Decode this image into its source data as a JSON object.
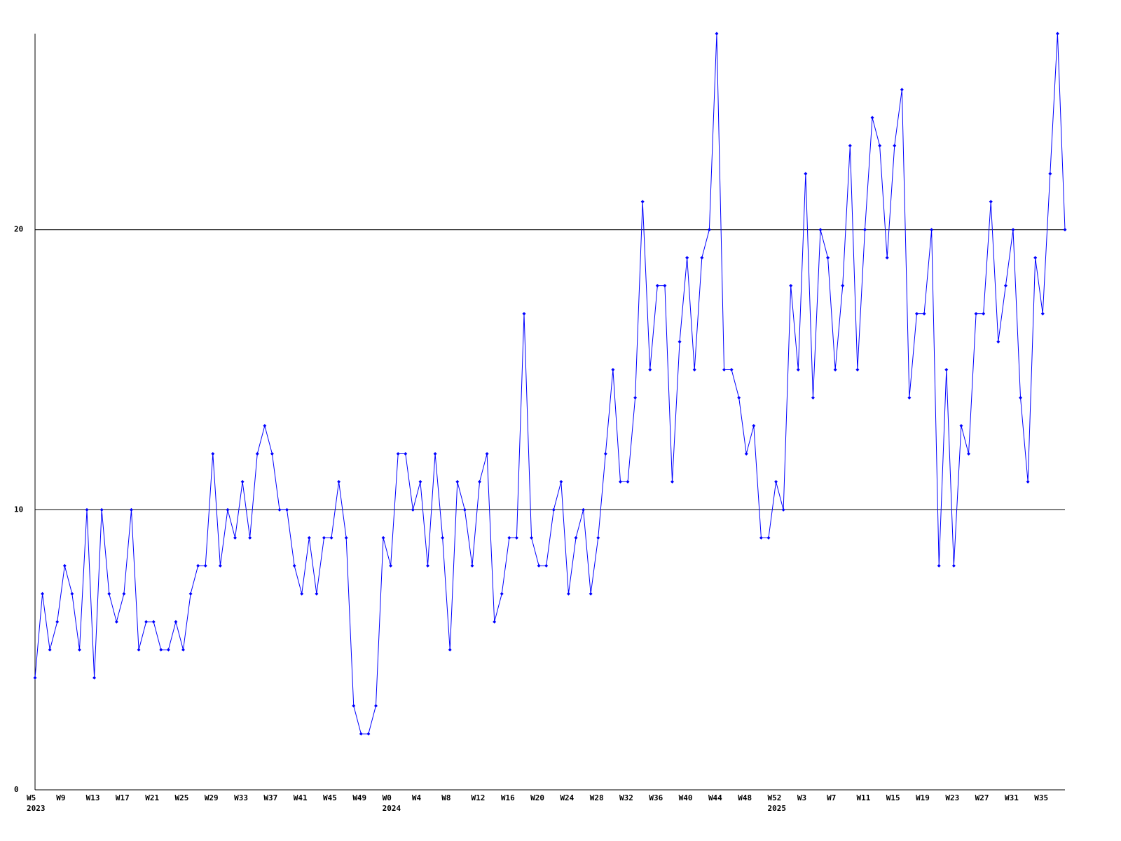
{
  "chart_data": {
    "type": "line",
    "color": "#0000ff",
    "grid": true,
    "ylim": [
      0,
      27
    ],
    "yticks": [
      0,
      10,
      20
    ],
    "values": [
      4,
      7,
      5,
      6,
      8,
      7,
      5,
      10,
      4,
      10,
      7,
      6,
      7,
      10,
      5,
      6,
      6,
      5,
      5,
      6,
      5,
      7,
      8,
      8,
      12,
      8,
      10,
      9,
      11,
      9,
      12,
      13,
      12,
      10,
      10,
      8,
      7,
      9,
      7,
      9,
      9,
      11,
      9,
      3,
      2,
      2,
      3,
      9,
      8,
      12,
      12,
      10,
      11,
      8,
      12,
      9,
      5,
      11,
      10,
      8,
      11,
      12,
      6,
      7,
      9,
      9,
      17,
      9,
      8,
      8,
      10,
      11,
      7,
      9,
      10,
      7,
      9,
      12,
      15,
      11,
      11,
      14,
      21,
      15,
      18,
      18,
      11,
      16,
      19,
      15,
      19,
      20,
      27,
      15,
      15,
      14,
      12,
      13,
      9,
      9,
      11,
      10,
      18,
      15,
      22,
      14,
      20,
      19,
      15,
      18,
      23,
      15,
      20,
      24,
      23,
      19,
      23,
      25,
      14,
      17,
      17,
      20,
      8,
      15,
      8,
      13,
      12,
      17,
      17,
      21,
      16,
      18,
      20,
      14,
      11,
      19,
      17,
      22,
      27,
      20
    ],
    "categories": [
      "W5",
      null,
      null,
      null,
      "W9",
      null,
      null,
      null,
      "W13",
      null,
      null,
      null,
      "W17",
      null,
      null,
      null,
      "W21",
      null,
      null,
      null,
      "W25",
      null,
      null,
      null,
      "W29",
      null,
      null,
      null,
      "W33",
      null,
      null,
      null,
      "W37",
      null,
      null,
      null,
      "W41",
      null,
      null,
      null,
      "W45",
      null,
      null,
      null,
      "W49",
      null,
      null,
      null,
      "W0",
      null,
      null,
      null,
      "W4",
      null,
      null,
      null,
      "W8",
      null,
      null,
      null,
      "W12",
      null,
      null,
      null,
      "W16",
      null,
      null,
      null,
      "W20",
      null,
      null,
      null,
      "W24",
      null,
      null,
      null,
      "W28",
      null,
      null,
      null,
      "W32",
      null,
      null,
      null,
      "W36",
      null,
      null,
      null,
      "W40",
      null,
      null,
      null,
      "W44",
      null,
      null,
      null,
      "W48",
      null,
      null,
      null,
      "W52",
      null,
      null,
      null,
      "W3",
      null,
      null,
      null,
      "W7",
      null,
      null,
      null,
      "W11",
      null,
      null,
      null,
      "W15",
      null,
      null,
      null,
      "W19",
      null,
      null,
      null,
      "W23",
      null,
      null,
      null,
      "W27",
      null,
      null,
      null,
      "W31",
      null,
      null,
      null,
      "W35",
      null,
      null,
      null
    ],
    "year_labels": [
      "2023",
      null,
      null,
      null,
      null,
      null,
      null,
      null,
      null,
      null,
      null,
      null,
      null,
      null,
      null,
      null,
      null,
      null,
      null,
      null,
      null,
      null,
      null,
      null,
      null,
      null,
      null,
      null,
      null,
      null,
      null,
      null,
      null,
      null,
      null,
      null,
      null,
      null,
      null,
      null,
      null,
      null,
      null,
      null,
      null,
      null,
      null,
      null,
      "2024",
      null,
      null,
      null,
      null,
      null,
      null,
      null,
      null,
      null,
      null,
      null,
      null,
      null,
      null,
      null,
      null,
      null,
      null,
      null,
      null,
      null,
      null,
      null,
      null,
      null,
      null,
      null,
      null,
      null,
      null,
      null,
      null,
      null,
      null,
      null,
      null,
      null,
      null,
      null,
      null,
      null,
      null,
      null,
      null,
      null,
      null,
      null,
      null,
      null,
      null,
      null,
      "2025",
      null,
      null,
      null,
      null,
      null,
      null,
      null,
      null,
      null,
      null,
      null,
      null,
      null,
      null,
      null,
      null,
      null,
      null,
      null,
      null,
      null,
      null,
      null,
      null,
      null,
      null,
      null,
      null,
      null,
      null,
      null,
      null,
      null,
      null,
      null,
      null,
      null,
      null,
      null
    ]
  }
}
